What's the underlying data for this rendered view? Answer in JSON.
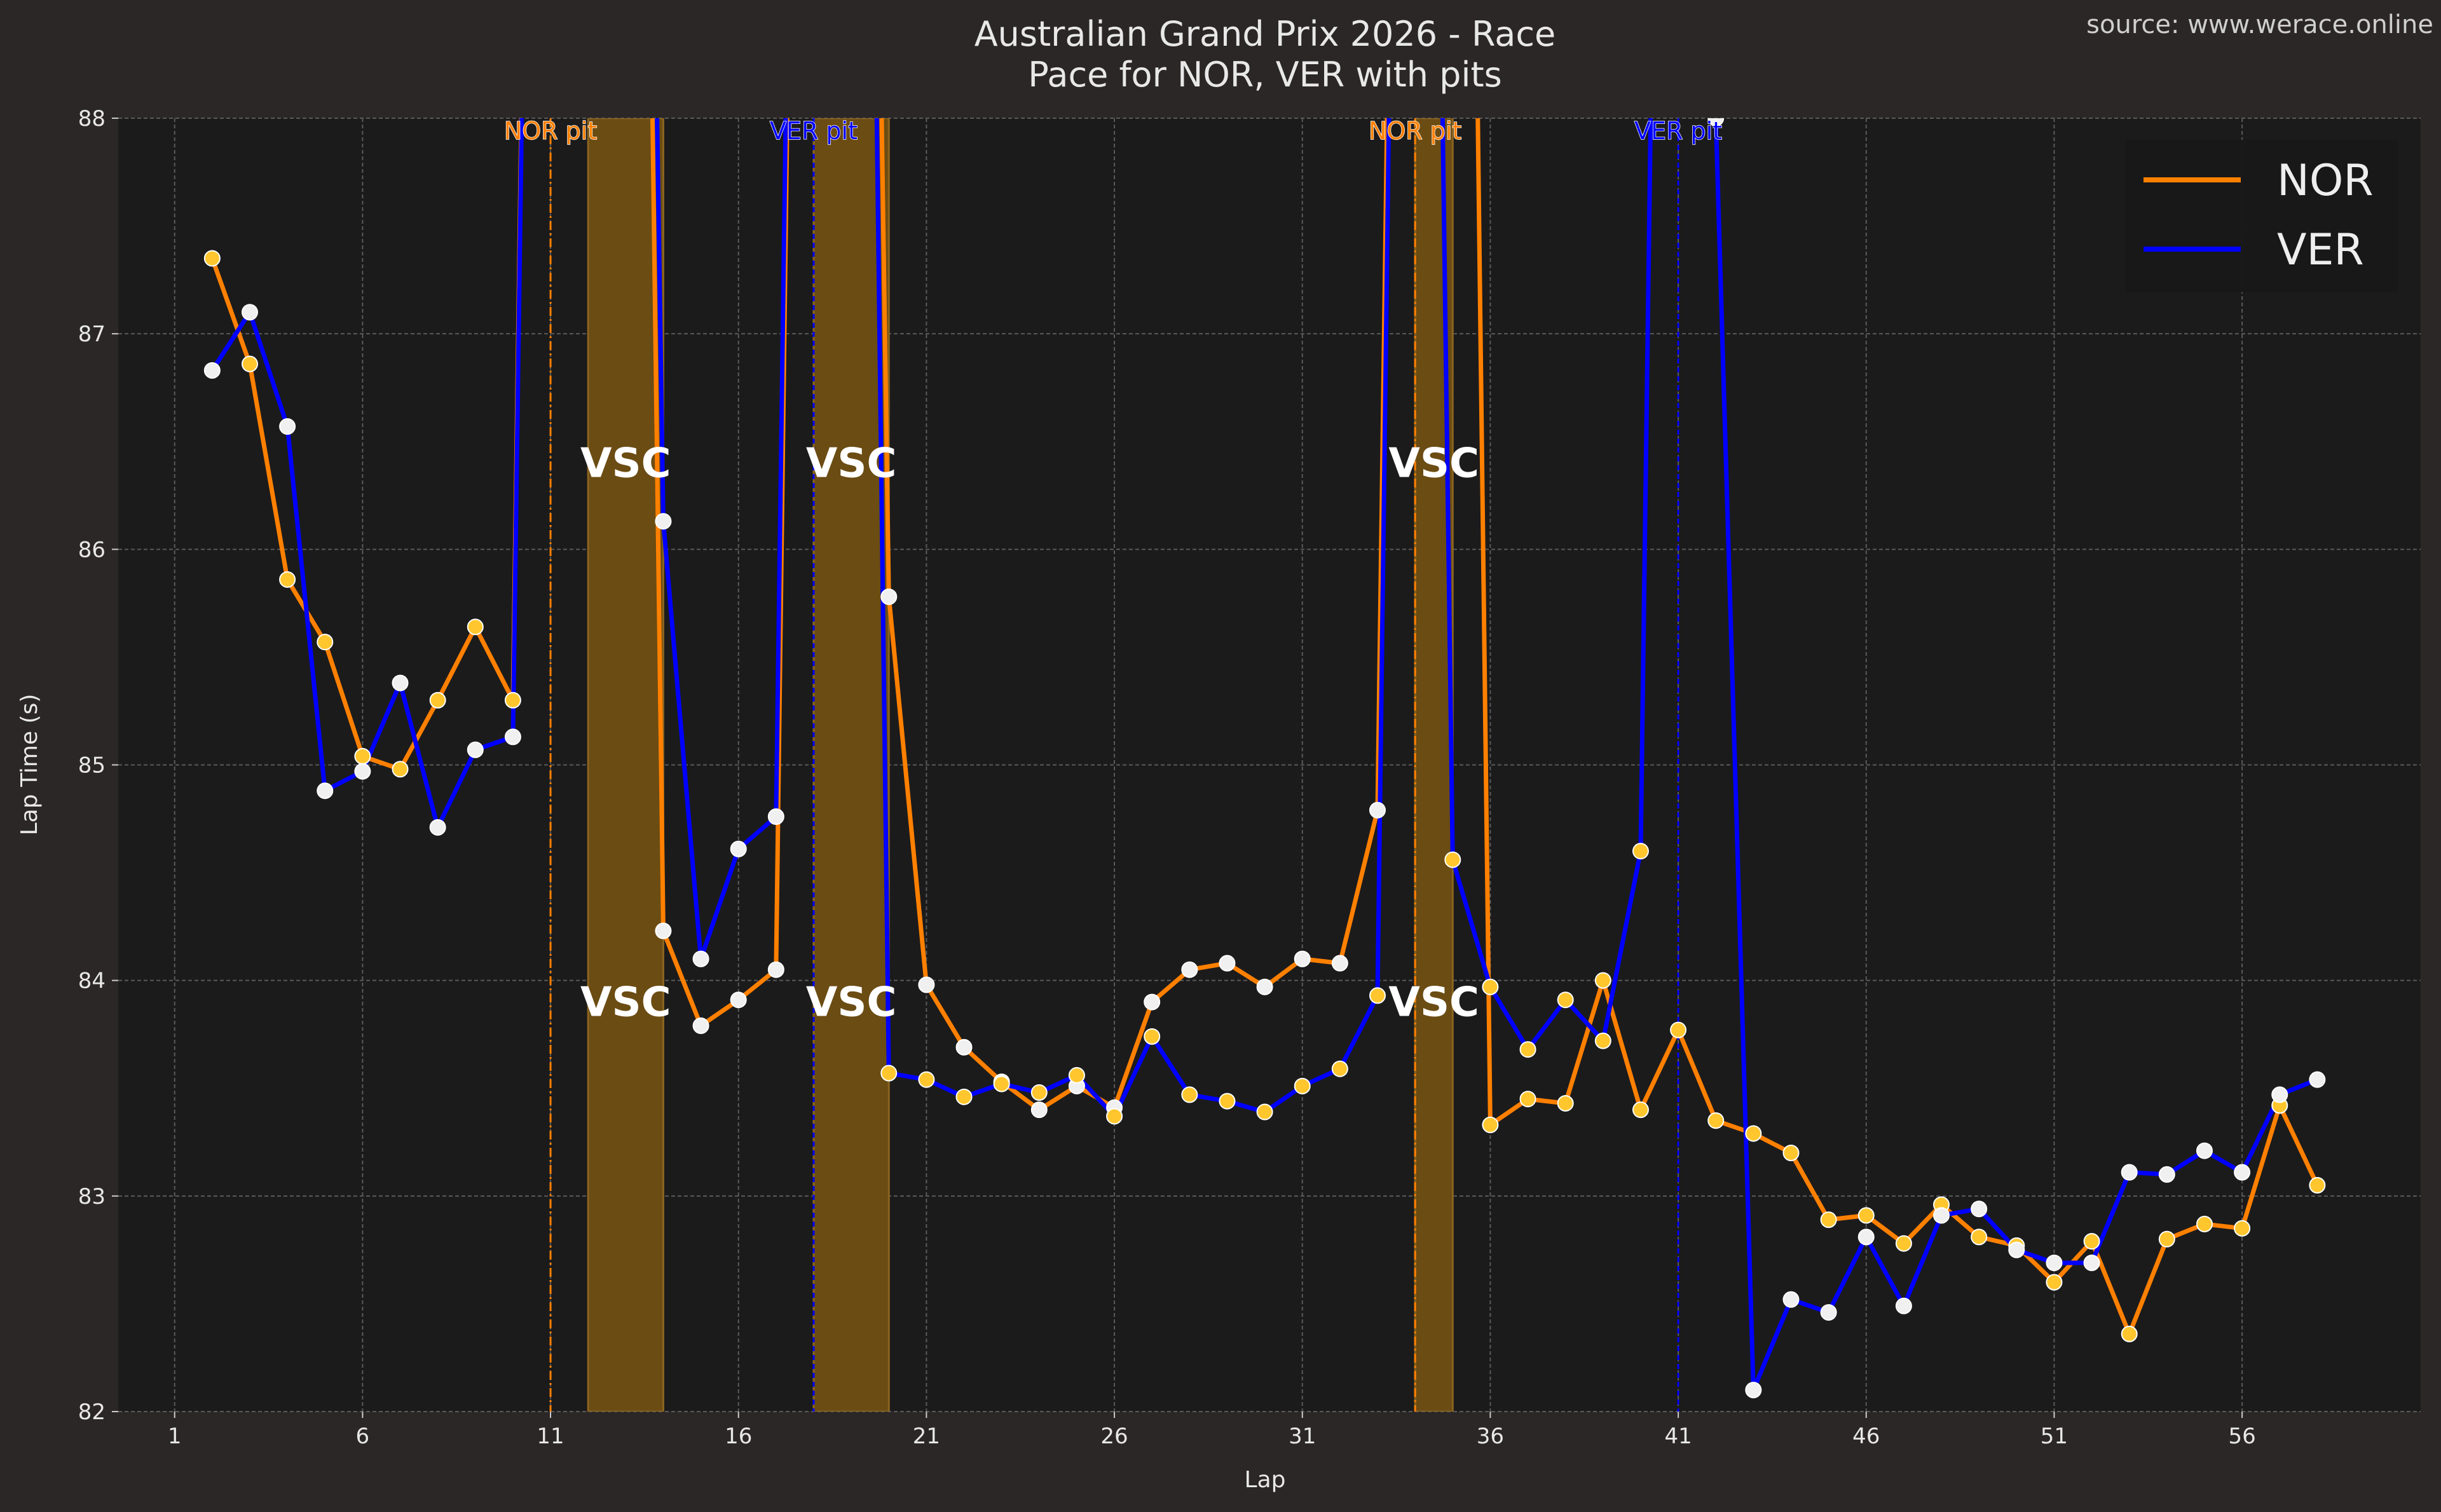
{
  "header": {
    "title": "Australian Grand Prix 2026 - Race",
    "subtitle": "Pace for NOR, VER with pits",
    "source": "source: www.werace.online"
  },
  "colors": {
    "figure_bg": "#2b2726",
    "plot_bg": "#1c1b1b",
    "NOR": "#ff8000",
    "VER": "#0000ff",
    "medium_marker": "#ffc62e",
    "hard_marker": "#f0f0f0",
    "vsc_band": "#6b4c13",
    "text": "#e8e8e8"
  },
  "chart_data": {
    "type": "line",
    "title": "Australian Grand Prix 2026 - Race",
    "subtitle": "Pace for NOR, VER with pits",
    "xlabel": "Lap",
    "ylabel": "Lap Time (s)",
    "xlim": [
      -0.5,
      60.75
    ],
    "ylim": [
      82,
      88
    ],
    "xticks": [
      1,
      6,
      11,
      16,
      21,
      26,
      31,
      36,
      41,
      46,
      51,
      56
    ],
    "yticks": [
      82,
      83,
      84,
      85,
      86,
      87,
      88
    ],
    "grid": true,
    "legend_position": "top-right",
    "x": [
      2,
      3,
      4,
      5,
      6,
      7,
      8,
      9,
      10,
      11,
      12,
      13,
      14,
      15,
      16,
      17,
      18,
      19,
      20,
      21,
      22,
      23,
      24,
      25,
      26,
      27,
      28,
      29,
      30,
      31,
      32,
      33,
      34,
      35,
      36,
      37,
      38,
      39,
      40,
      41,
      42,
      43,
      44,
      45,
      46,
      47,
      48,
      49,
      50,
      51,
      52,
      53,
      54,
      55,
      56,
      57,
      58
    ],
    "series": [
      {
        "name": "NOR",
        "color": "#ff8000",
        "values": [
          87.35,
          86.86,
          85.86,
          85.57,
          85.04,
          84.98,
          85.3,
          85.64,
          85.3,
          null,
          null,
          null,
          84.23,
          83.79,
          83.91,
          84.05,
          null,
          null,
          85.78,
          83.98,
          83.69,
          83.53,
          83.4,
          83.51,
          83.41,
          83.9,
          84.05,
          84.08,
          83.97,
          84.1,
          84.08,
          84.79,
          null,
          null,
          83.33,
          83.45,
          83.43,
          84.0,
          83.4,
          83.77,
          83.35,
          83.29,
          83.2,
          82.89,
          82.91,
          82.78,
          82.96,
          82.81,
          82.77,
          82.6,
          82.79,
          82.36,
          82.8,
          82.87,
          82.85,
          83.42,
          83.05
        ],
        "compounds": [
          "M",
          "M",
          "M",
          "M",
          "M",
          "M",
          "M",
          "M",
          "M",
          "M",
          "M",
          "M",
          "H",
          "H",
          "H",
          "H",
          "H",
          "H",
          "H",
          "H",
          "H",
          "H",
          "H",
          "H",
          "H",
          "H",
          "H",
          "H",
          "H",
          "H",
          "H",
          "H",
          "H",
          "H",
          "M",
          "M",
          "M",
          "M",
          "M",
          "M",
          "M",
          "M",
          "M",
          "M",
          "M",
          "M",
          "M",
          "M",
          "M",
          "M",
          "M",
          "M",
          "M",
          "M",
          "M",
          "M",
          "M"
        ]
      },
      {
        "name": "VER",
        "color": "#0000ff",
        "values": [
          86.83,
          87.1,
          86.57,
          84.88,
          84.97,
          85.38,
          84.71,
          85.07,
          85.13,
          null,
          null,
          null,
          86.13,
          84.1,
          84.61,
          84.76,
          null,
          null,
          83.57,
          83.54,
          83.46,
          83.52,
          83.48,
          83.56,
          83.37,
          83.74,
          83.47,
          83.44,
          83.39,
          83.51,
          83.59,
          83.93,
          null,
          84.56,
          83.97,
          83.68,
          83.91,
          83.72,
          84.6,
          null,
          88.0,
          82.1,
          82.52,
          82.46,
          82.81,
          82.49,
          82.91,
          82.94,
          82.75,
          82.69,
          82.69,
          83.11,
          83.1,
          83.21,
          83.11,
          83.47,
          83.54
        ],
        "compounds": [
          "H",
          "H",
          "H",
          "H",
          "H",
          "H",
          "H",
          "H",
          "H",
          "H",
          "H",
          "H",
          "H",
          "H",
          "H",
          "H",
          "H",
          "H",
          "M",
          "M",
          "M",
          "M",
          "M",
          "M",
          "M",
          "M",
          "M",
          "M",
          "M",
          "M",
          "M",
          "M",
          "M",
          "M",
          "M",
          "M",
          "M",
          "M",
          "M",
          "M",
          "H",
          "H",
          "H",
          "H",
          "H",
          "H",
          "H",
          "H",
          "H",
          "H",
          "H",
          "H",
          "H",
          "H",
          "H",
          "H",
          "H"
        ]
      }
    ],
    "pit_markers": [
      {
        "label": "NOR pit",
        "lap": 11,
        "driver": "NOR"
      },
      {
        "label": "VER pit",
        "lap": 18,
        "driver": "VER"
      },
      {
        "label": "NOR pit",
        "lap": 34,
        "driver": "NOR"
      },
      {
        "label": "VER pit",
        "lap": 41,
        "driver": "VER"
      }
    ],
    "vsc_periods": [
      {
        "label": "VSC",
        "start": 12,
        "end": 14
      },
      {
        "label": "VSC",
        "start": 18,
        "end": 20
      },
      {
        "label": "VSC",
        "start": 34,
        "end": 35
      }
    ],
    "vsc_label_levels": [
      86.4,
      83.9
    ]
  }
}
